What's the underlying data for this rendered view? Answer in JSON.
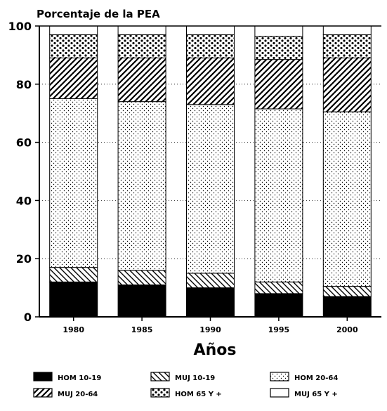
{
  "chart_data": {
    "type": "bar",
    "stacked": true,
    "ylabel": "Porcentaje de la PEA",
    "xlabel": "Años",
    "ylim": [
      0,
      100
    ],
    "yticks": [
      0,
      20,
      40,
      60,
      80,
      100
    ],
    "categories": [
      "1980",
      "1985",
      "1990",
      "1995",
      "2000"
    ],
    "series": [
      {
        "name": "HOM 10-19",
        "pattern": "solid",
        "values": [
          12,
          11,
          10,
          8,
          7
        ]
      },
      {
        "name": "MUJ 10-19",
        "pattern": "backslash",
        "values": [
          5,
          5,
          5,
          4,
          3.5
        ]
      },
      {
        "name": "HOM 20-64",
        "pattern": "dots-fine",
        "values": [
          58,
          58,
          58,
          59.5,
          60
        ]
      },
      {
        "name": "MUJ 20-64",
        "pattern": "slash",
        "values": [
          14,
          15,
          16,
          17,
          18.5
        ]
      },
      {
        "name": "HOM 65 Y +",
        "pattern": "dots-bold",
        "values": [
          8,
          8,
          8,
          8,
          8
        ]
      },
      {
        "name": "MUJ 65 Y +",
        "pattern": "blank",
        "values": [
          3,
          3,
          3,
          3.5,
          3
        ]
      }
    ]
  }
}
